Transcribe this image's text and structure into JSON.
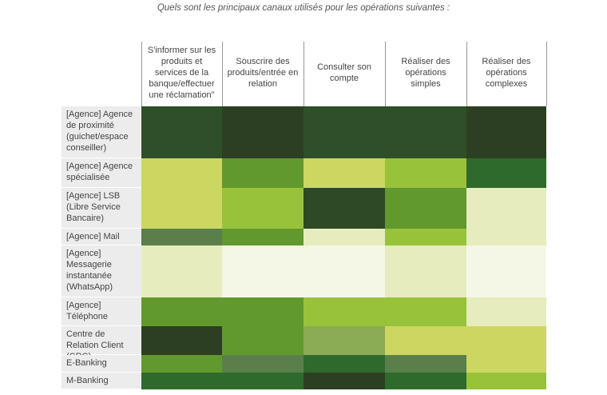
{
  "title": "Quels sont les principaux canaux utilisés pour les opérations suivantes :",
  "chart_data": {
    "type": "heatmap",
    "title": "Quels sont les principaux canaux utilisés pour les opérations suivantes :",
    "columns": [
      "S'informer sur les produits et services de la banque/effectuer une réclamation\"",
      "Souscrire des produits/entrée en relation",
      "Consulter son compte",
      "Réaliser des opérations simples",
      "Réaliser des opérations complexes"
    ],
    "rows": [
      "[Agence] Agence de proximité (guichet/espace conseiller)",
      "[Agence] Agence spécialisée",
      "[Agence] LSB (Libre Service Bancaire)",
      "[Agence] Mail",
      "[Agence] Messagerie instantanée (WhatsApp)",
      "[Agence] Téléphone",
      "Centre de Relation Client (CRC)",
      "E-Banking",
      "M-Banking"
    ],
    "colors": [
      [
        "#2e4f27",
        "#2d3f22",
        "#2e4f27",
        "#2e4f27",
        "#2d3f22"
      ],
      [
        "#cbd760",
        "#62992e",
        "#cbd760",
        "#99c23b",
        "#2e6a2c"
      ],
      [
        "#cbd760",
        "#99c23b",
        "#2d4a24",
        "#62992e",
        "#e6ecbe"
      ],
      [
        "#5b7f4a",
        "#62992e",
        "#e6ecbe",
        "#99c23b",
        "#e6ecbe"
      ],
      [
        "#e6ecbe",
        "#f5f7e6",
        "#f5f7e6",
        "#e6ecbe",
        "#f5f7e6"
      ],
      [
        "#62992e",
        "#62992e",
        "#99c23b",
        "#99c23b",
        "#e6ecbe"
      ],
      [
        "#2d3f22",
        "#62992e",
        "#8bab55",
        "#cbd760",
        "#cbd760"
      ],
      [
        "#62992e",
        "#5b7f4a",
        "#2e6a2c",
        "#5b7f4a",
        "#cbd760"
      ],
      [
        "#2e6a2c",
        "#2e6a2c",
        "#2d3f22",
        "#2e6a2c",
        "#99c23b"
      ]
    ]
  }
}
